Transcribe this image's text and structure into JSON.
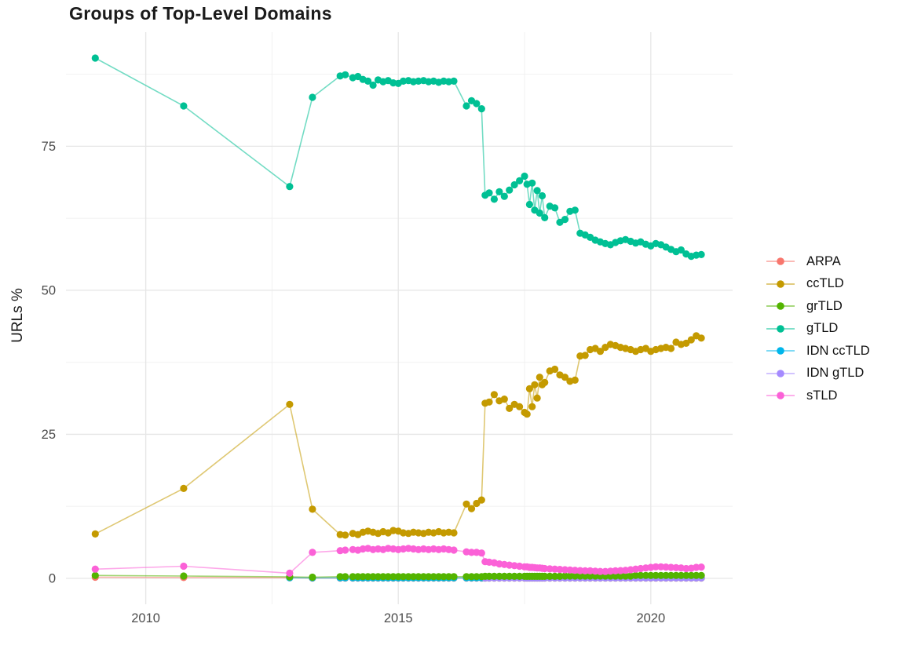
{
  "chart_data": {
    "type": "line",
    "title": "Groups of Top-Level Domains",
    "xlabel": "",
    "ylabel": "URLs %",
    "grid": true,
    "legend_position": "right",
    "x_range": [
      2008.42,
      2021.62
    ],
    "y_range": [
      -4.5,
      94.8
    ],
    "x_major_ticks": [
      {
        "value": 2010,
        "label": "2010"
      },
      {
        "value": 2015,
        "label": "2015"
      },
      {
        "value": 2020,
        "label": "2020"
      }
    ],
    "x_minor_ticks": [
      2012.5,
      2017.5
    ],
    "y_major_ticks": [
      {
        "value": 0,
        "label": "0"
      },
      {
        "value": 25,
        "label": "25"
      },
      {
        "value": 50,
        "label": "50"
      },
      {
        "value": 75,
        "label": "75"
      }
    ],
    "y_minor_ticks": [
      12.5,
      37.5,
      62.5,
      87.5
    ],
    "colors": {
      "grid_major": "#E6E6E6",
      "grid_minor": "#F0F0F0",
      "axis_text": "#4D4D4D",
      "background": "#FFFFFF"
    },
    "draw_order": [
      "ARPA",
      "IDN ccTLD",
      "IDN gTLD",
      "grTLD",
      "ccTLD",
      "gTLD",
      "sTLD"
    ],
    "legend_order": [
      "ARPA",
      "ccTLD",
      "grTLD",
      "gTLD",
      "IDN ccTLD",
      "IDN gTLD",
      "sTLD"
    ],
    "x": [
      2009.0,
      2010.75,
      2012.85,
      2013.3,
      2013.85,
      2013.95,
      2014.1,
      2014.2,
      2014.3,
      2014.4,
      2014.5,
      2014.6,
      2014.7,
      2014.8,
      2014.9,
      2015.0,
      2015.1,
      2015.2,
      2015.3,
      2015.4,
      2015.5,
      2015.6,
      2015.7,
      2015.8,
      2015.9,
      2016.0,
      2016.1,
      2016.35,
      2016.45,
      2016.55,
      2016.65,
      2016.72,
      2016.8,
      2016.9,
      2017.0,
      2017.1,
      2017.2,
      2017.3,
      2017.4,
      2017.5,
      2017.55,
      2017.6,
      2017.65,
      2017.7,
      2017.75,
      2017.8,
      2017.85,
      2017.9,
      2018.0,
      2018.1,
      2018.2,
      2018.3,
      2018.4,
      2018.5,
      2018.6,
      2018.7,
      2018.8,
      2018.9,
      2019.0,
      2019.1,
      2019.2,
      2019.3,
      2019.4,
      2019.5,
      2019.6,
      2019.7,
      2019.8,
      2019.9,
      2020.0,
      2020.1,
      2020.2,
      2020.3,
      2020.4,
      2020.5,
      2020.6,
      2020.7,
      2020.8,
      2020.9,
      2021.0
    ],
    "series": [
      {
        "name": "ARPA",
        "color": "#F8766D",
        "start_index": 0,
        "values": [
          0.2,
          0.15,
          0.1,
          0.05,
          0.05,
          0.05,
          0.05,
          0.05,
          0.05,
          0.05,
          0.05,
          0.05,
          0.05,
          0.05,
          0.05,
          0.05,
          0.05,
          0.05,
          0.05,
          0.05,
          0.05,
          0.05,
          0.05,
          0.05,
          0.05,
          0.05,
          0.05,
          0.05,
          0.05,
          0.05,
          0.05,
          0.05,
          0.05,
          0.05,
          0.05,
          0.05,
          0.05,
          0.05,
          0.05,
          0.05,
          0.05,
          0.05,
          0.05,
          0.05,
          0.05,
          0.05,
          0.05,
          0.05,
          0.05,
          0.05,
          0.05,
          0.05,
          0.05,
          0.05,
          0.05,
          0.05,
          0.05,
          0.05,
          0.05,
          0.05,
          0.05,
          0.05,
          0.05,
          0.05,
          0.05,
          0.05,
          0.05,
          0.05,
          0.05,
          0.05,
          0.05,
          0.05,
          0.05,
          0.05,
          0.05,
          0.05,
          0.05,
          0.05,
          0.05
        ]
      },
      {
        "name": "ccTLD",
        "color": "#C49A00",
        "start_index": 0,
        "values": [
          7.7,
          15.6,
          30.2,
          12.0,
          7.6,
          7.5,
          7.8,
          7.6,
          8.0,
          8.2,
          8.0,
          7.8,
          8.1,
          7.9,
          8.3,
          8.2,
          7.9,
          7.8,
          8.0,
          7.9,
          7.8,
          8.0,
          7.9,
          8.1,
          7.9,
          8.0,
          7.9,
          12.9,
          12.1,
          13.0,
          13.6,
          30.4,
          30.6,
          31.9,
          30.8,
          31.1,
          29.5,
          30.2,
          29.8,
          28.8,
          28.5,
          32.9,
          29.8,
          33.6,
          31.3,
          34.9,
          33.6,
          34.0,
          36.0,
          36.3,
          35.3,
          34.9,
          34.2,
          34.4,
          38.6,
          38.7,
          39.7,
          39.9,
          39.4,
          40.1,
          40.6,
          40.4,
          40.1,
          39.9,
          39.7,
          39.4,
          39.7,
          39.9,
          39.4,
          39.7,
          39.9,
          40.1,
          39.9,
          41.0,
          40.6,
          40.8,
          41.4,
          42.1,
          41.7
        ]
      },
      {
        "name": "grTLD",
        "color": "#53B400",
        "start_index": 0,
        "values": [
          0.5,
          0.4,
          0.25,
          0.2,
          0.3,
          0.3,
          0.3,
          0.3,
          0.3,
          0.3,
          0.3,
          0.3,
          0.3,
          0.3,
          0.3,
          0.3,
          0.3,
          0.3,
          0.3,
          0.3,
          0.3,
          0.3,
          0.3,
          0.3,
          0.3,
          0.3,
          0.3,
          0.3,
          0.3,
          0.3,
          0.3,
          0.35,
          0.35,
          0.35,
          0.35,
          0.35,
          0.35,
          0.35,
          0.35,
          0.35,
          0.35,
          0.35,
          0.35,
          0.35,
          0.35,
          0.35,
          0.35,
          0.35,
          0.35,
          0.35,
          0.35,
          0.4,
          0.4,
          0.4,
          0.4,
          0.4,
          0.4,
          0.4,
          0.4,
          0.4,
          0.4,
          0.4,
          0.4,
          0.4,
          0.4,
          0.5,
          0.5,
          0.5,
          0.5,
          0.5,
          0.5,
          0.5,
          0.5,
          0.5,
          0.5,
          0.5,
          0.5,
          0.5,
          0.5
        ]
      },
      {
        "name": "gTLD",
        "color": "#00C094",
        "start_index": 0,
        "values": [
          90.3,
          82.0,
          68.0,
          83.5,
          87.2,
          87.4,
          86.9,
          87.1,
          86.6,
          86.3,
          85.6,
          86.5,
          86.2,
          86.4,
          86.0,
          85.9,
          86.3,
          86.4,
          86.2,
          86.3,
          86.4,
          86.2,
          86.3,
          86.1,
          86.3,
          86.2,
          86.3,
          82.0,
          82.9,
          82.4,
          81.5,
          66.5,
          66.9,
          65.8,
          67.1,
          66.3,
          67.4,
          68.3,
          69.0,
          69.8,
          68.4,
          64.9,
          68.6,
          63.9,
          67.3,
          63.4,
          66.4,
          62.6,
          64.6,
          64.3,
          61.8,
          62.3,
          63.7,
          63.9,
          59.9,
          59.6,
          59.2,
          58.7,
          58.4,
          58.1,
          57.9,
          58.3,
          58.6,
          58.8,
          58.5,
          58.2,
          58.4,
          58.0,
          57.7,
          58.1,
          57.9,
          57.5,
          57.1,
          56.7,
          57.0,
          56.3,
          55.9,
          56.1,
          56.2
        ]
      },
      {
        "name": "IDN ccTLD",
        "color": "#00B6EB",
        "start_index": 2,
        "values": [
          0.1,
          0.08,
          0.08,
          0.08,
          0.08,
          0.08,
          0.08,
          0.08,
          0.08,
          0.08,
          0.08,
          0.08,
          0.08,
          0.08,
          0.08,
          0.08,
          0.08,
          0.08,
          0.08,
          0.08,
          0.08,
          0.08,
          0.08,
          0.08,
          0.08,
          0.08,
          0.08,
          0.08,
          0.08,
          0.08,
          0.08,
          0.08,
          0.08,
          0.08,
          0.08,
          0.08,
          0.08,
          0.08,
          0.08,
          0.08,
          0.08,
          0.08,
          0.08,
          0.08,
          0.08,
          0.08,
          0.08,
          0.08,
          0.08,
          0.08,
          0.08,
          0.08,
          0.08,
          0.08,
          0.08,
          0.08,
          0.08,
          0.08,
          0.08,
          0.08,
          0.08,
          0.08,
          0.08,
          0.08,
          0.08,
          0.08,
          0.08,
          0.08,
          0.08,
          0.08,
          0.08,
          0.08,
          0.08,
          0.08,
          0.08,
          0.08,
          0.08
        ]
      },
      {
        "name": "IDN gTLD",
        "color": "#A58AFF",
        "start_index": 31,
        "values": [
          0.08,
          0.08,
          0.08,
          0.08,
          0.08,
          0.08,
          0.08,
          0.08,
          0.08,
          0.08,
          0.08,
          0.08,
          0.08,
          0.08,
          0.08,
          0.08,
          0.08,
          0.08,
          0.08,
          0.08,
          0.08,
          0.08,
          0.08,
          0.08,
          0.08,
          0.08,
          0.08,
          0.08,
          0.08,
          0.08,
          0.08,
          0.08,
          0.08,
          0.08,
          0.08,
          0.08,
          0.08,
          0.08,
          0.08,
          0.08,
          0.08,
          0.08,
          0.08,
          0.08,
          0.08,
          0.08,
          0.08,
          0.08
        ]
      },
      {
        "name": "sTLD",
        "color": "#FB61D7",
        "start_index": 0,
        "values": [
          1.6,
          2.1,
          0.9,
          4.5,
          4.8,
          4.9,
          5.0,
          4.9,
          5.1,
          5.2,
          5.0,
          5.1,
          5.0,
          5.2,
          5.1,
          5.0,
          5.1,
          5.2,
          5.1,
          5.0,
          5.1,
          5.0,
          5.1,
          5.0,
          5.1,
          5.0,
          4.9,
          4.6,
          4.5,
          4.5,
          4.4,
          2.9,
          2.8,
          2.7,
          2.5,
          2.4,
          2.3,
          2.2,
          2.1,
          2.0,
          2.0,
          1.9,
          1.9,
          1.85,
          1.8,
          1.8,
          1.75,
          1.7,
          1.65,
          1.6,
          1.55,
          1.5,
          1.45,
          1.4,
          1.35,
          1.3,
          1.3,
          1.25,
          1.2,
          1.2,
          1.25,
          1.3,
          1.35,
          1.4,
          1.5,
          1.6,
          1.7,
          1.8,
          1.9,
          2.0,
          2.0,
          1.95,
          1.9,
          1.85,
          1.8,
          1.7,
          1.75,
          1.9,
          1.95
        ]
      }
    ]
  }
}
